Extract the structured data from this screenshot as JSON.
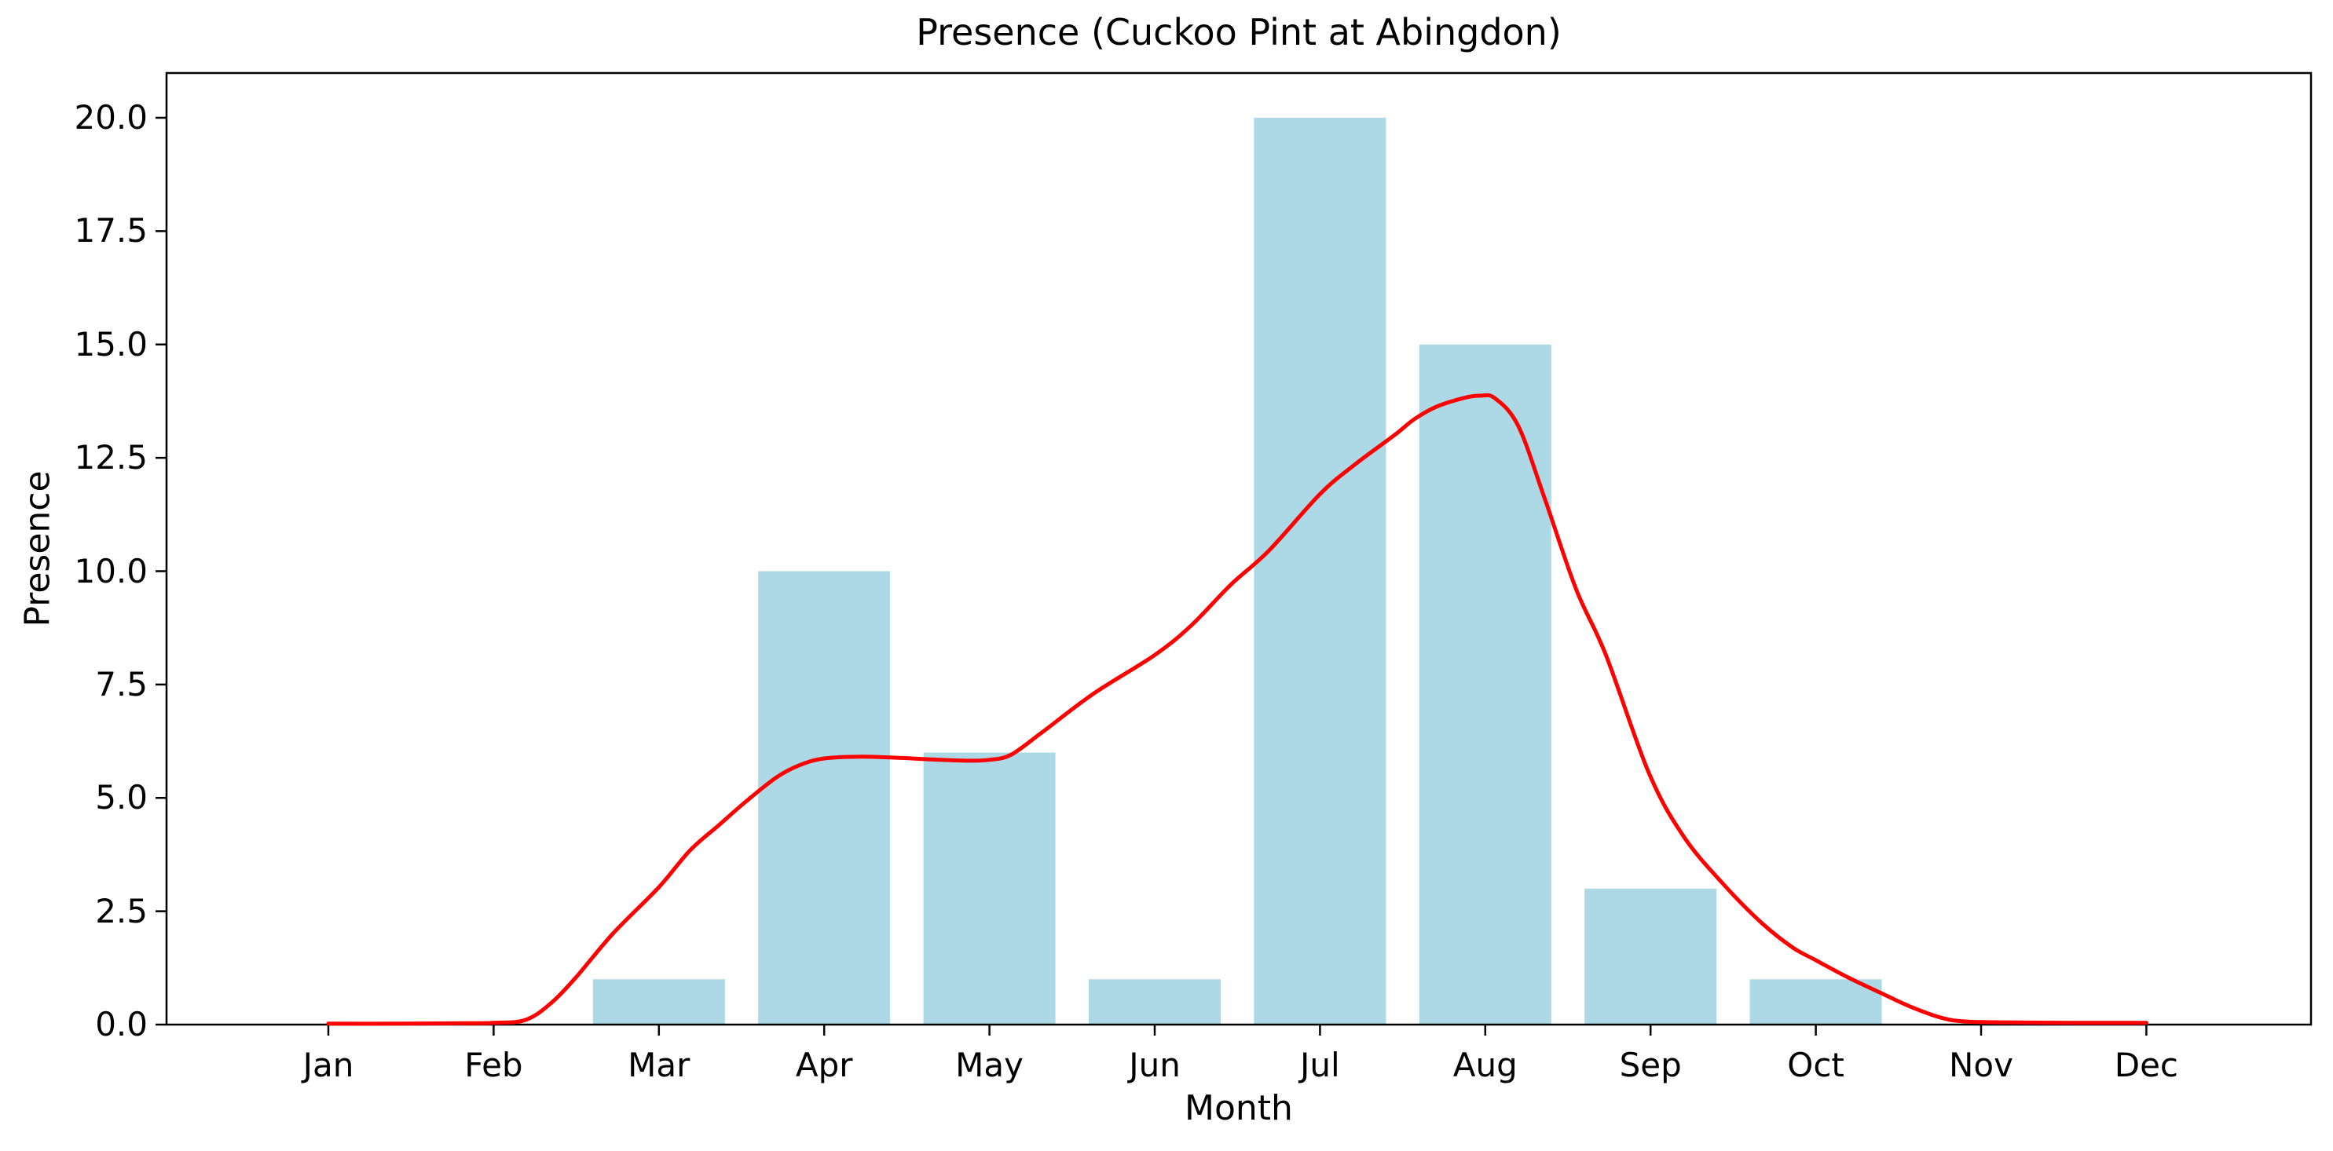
{
  "chart_data": {
    "type": "bar",
    "title": "Presence (Cuckoo Pint at Abingdon)",
    "xlabel": "Month",
    "ylabel": "Presence",
    "categories": [
      "Jan",
      "Feb",
      "Mar",
      "Apr",
      "May",
      "Jun",
      "Jul",
      "Aug",
      "Sep",
      "Oct",
      "Nov",
      "Dec"
    ],
    "series": [
      {
        "name": "monthly-presence-bars",
        "type": "bar",
        "color": "#ADD8E6",
        "values": [
          0,
          0,
          1,
          10,
          6,
          1,
          20,
          15,
          3,
          1,
          0,
          0
        ]
      },
      {
        "name": "smoothed-presence-line",
        "type": "line",
        "color": "#FF0000",
        "values_at_months": [
          0,
          0,
          3.0,
          5.9,
          5.8,
          8.1,
          11.7,
          13.8,
          5.5,
          1.4,
          0.1,
          0
        ],
        "peak_value": 13.9,
        "samples": [
          [
            0.0,
            0.02
          ],
          [
            0.4,
            0.02
          ],
          [
            0.82,
            0.03
          ],
          [
            1.0,
            0.04
          ],
          [
            1.19,
            0.1
          ],
          [
            1.34,
            0.45
          ],
          [
            1.5,
            1.05
          ],
          [
            1.72,
            2.0
          ],
          [
            2.0,
            3.03
          ],
          [
            2.19,
            3.85
          ],
          [
            2.37,
            4.42
          ],
          [
            2.52,
            4.9
          ],
          [
            2.71,
            5.45
          ],
          [
            2.85,
            5.72
          ],
          [
            3.0,
            5.87
          ],
          [
            3.23,
            5.91
          ],
          [
            3.47,
            5.88
          ],
          [
            3.7,
            5.84
          ],
          [
            3.89,
            5.82
          ],
          [
            4.0,
            5.84
          ],
          [
            4.13,
            5.95
          ],
          [
            4.32,
            6.45
          ],
          [
            4.63,
            7.3
          ],
          [
            5.0,
            8.15
          ],
          [
            5.22,
            8.8
          ],
          [
            5.46,
            9.7
          ],
          [
            5.69,
            10.45
          ],
          [
            6.0,
            11.7
          ],
          [
            6.21,
            12.35
          ],
          [
            6.45,
            13.0
          ],
          [
            6.57,
            13.35
          ],
          [
            6.7,
            13.62
          ],
          [
            6.87,
            13.82
          ],
          [
            6.97,
            13.87
          ],
          [
            7.06,
            13.81
          ],
          [
            7.2,
            13.2
          ],
          [
            7.36,
            11.6
          ],
          [
            7.55,
            9.6
          ],
          [
            7.73,
            8.15
          ],
          [
            7.99,
            5.55
          ],
          [
            8.2,
            4.15
          ],
          [
            8.44,
            3.1
          ],
          [
            8.67,
            2.25
          ],
          [
            8.86,
            1.7
          ],
          [
            9.0,
            1.42
          ],
          [
            9.19,
            1.05
          ],
          [
            9.38,
            0.72
          ],
          [
            9.57,
            0.4
          ],
          [
            9.76,
            0.15
          ],
          [
            9.9,
            0.07
          ],
          [
            10.14,
            0.05
          ],
          [
            10.57,
            0.04
          ],
          [
            11.0,
            0.04
          ]
        ]
      }
    ],
    "ylim": [
      0,
      21
    ],
    "ytick_labels": [
      "0.0",
      "2.5",
      "5.0",
      "7.5",
      "10.0",
      "12.5",
      "15.0",
      "17.5",
      "20.0"
    ],
    "grid": false,
    "legend": false,
    "axis_color": "#000000",
    "background": "#FFFFFF"
  }
}
